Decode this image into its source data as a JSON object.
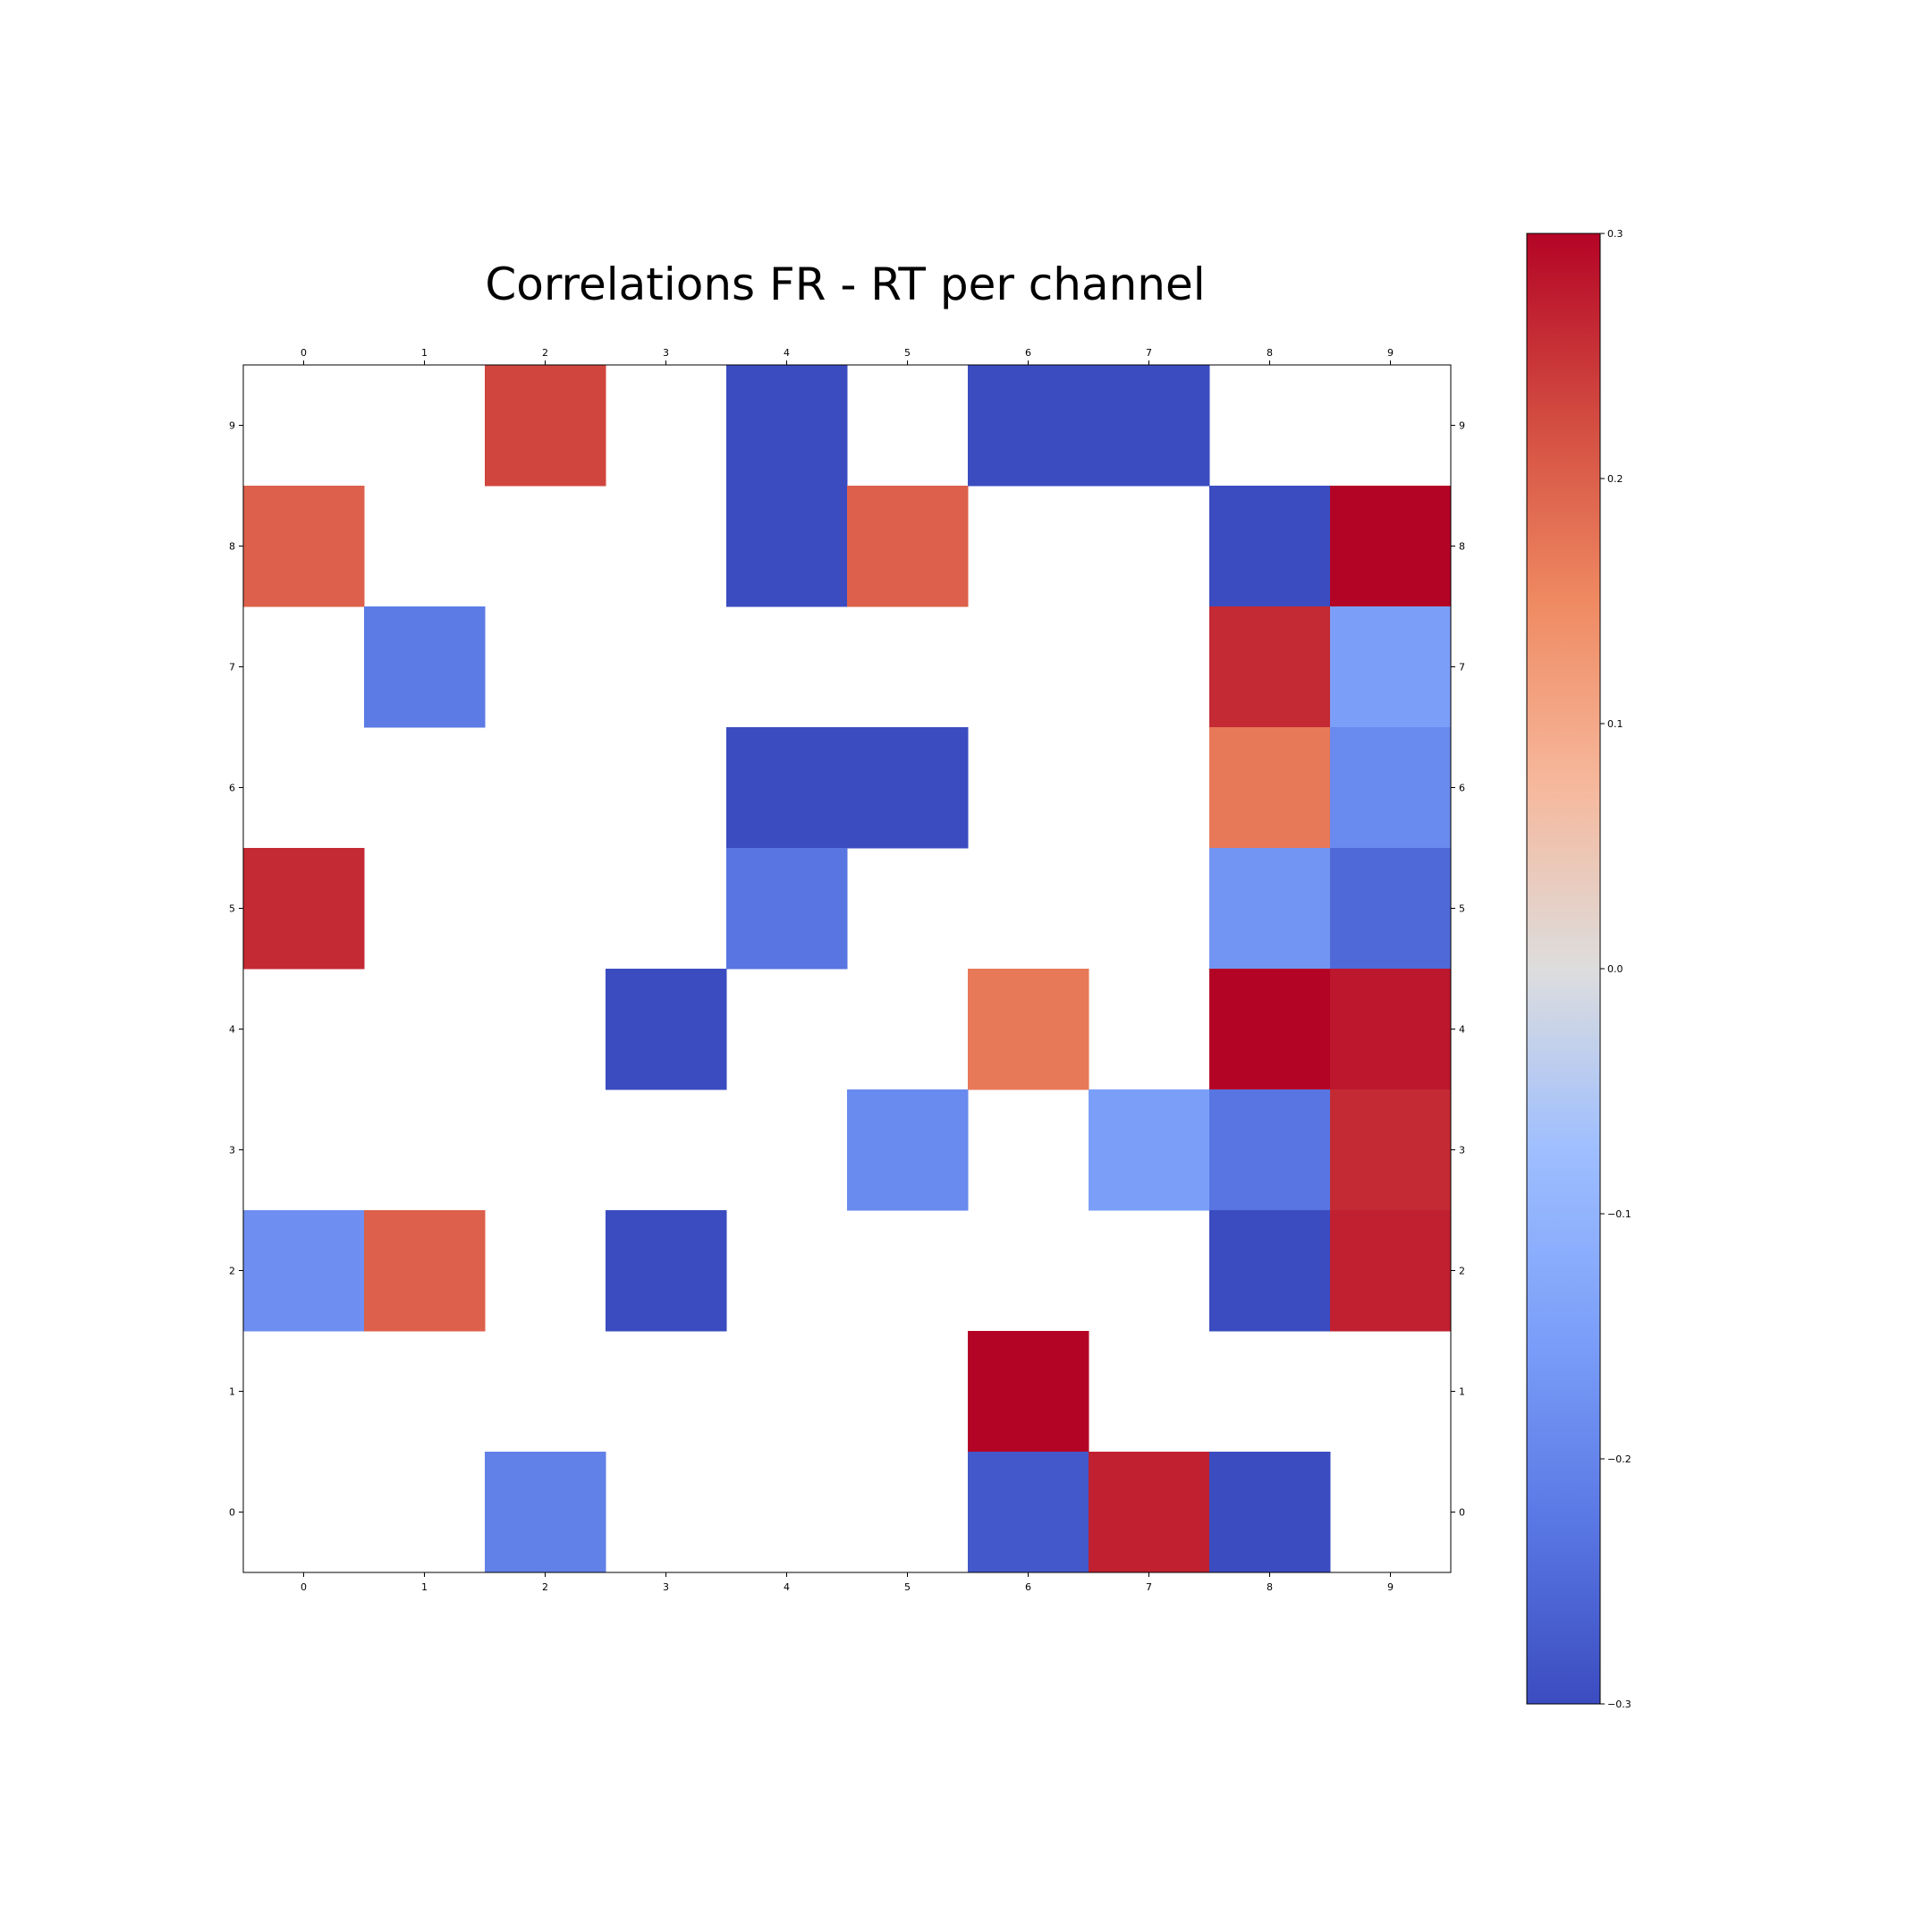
{
  "chart_data": {
    "type": "heatmap",
    "title": "Correlations FR - RT per channel",
    "xlabel": "",
    "ylabel": "",
    "x_ticks": [
      "0",
      "1",
      "2",
      "3",
      "4",
      "5",
      "6",
      "7",
      "8",
      "9"
    ],
    "y_ticks": [
      "0",
      "1",
      "2",
      "3",
      "4",
      "5",
      "6",
      "7",
      "8",
      "9"
    ],
    "colormap": "coolwarm",
    "vmin": -0.3,
    "vmax": 0.3,
    "colorbar_ticks": [
      "−0.3",
      "−0.2",
      "−0.1",
      "0.0",
      "0.1",
      "0.2",
      "0.3"
    ],
    "colorbar_tick_values": [
      -0.3,
      -0.2,
      -0.1,
      0.0,
      0.1,
      0.2,
      0.3
    ],
    "missing_color": "#ffffff",
    "grid": false,
    "cells": [
      {
        "row": 9,
        "col": 2,
        "value": 0.23
      },
      {
        "row": 9,
        "col": 4,
        "value": -0.3
      },
      {
        "row": 9,
        "col": 6,
        "value": -0.3
      },
      {
        "row": 9,
        "col": 7,
        "value": -0.3
      },
      {
        "row": 8,
        "col": 0,
        "value": 0.2
      },
      {
        "row": 8,
        "col": 4,
        "value": -0.3
      },
      {
        "row": 8,
        "col": 5,
        "value": 0.2
      },
      {
        "row": 8,
        "col": 8,
        "value": -0.3
      },
      {
        "row": 8,
        "col": 9,
        "value": 0.3
      },
      {
        "row": 7,
        "col": 1,
        "value": -0.22
      },
      {
        "row": 7,
        "col": 8,
        "value": 0.26
      },
      {
        "row": 7,
        "col": 9,
        "value": -0.15
      },
      {
        "row": 6,
        "col": 4,
        "value": -0.3
      },
      {
        "row": 6,
        "col": 5,
        "value": -0.3
      },
      {
        "row": 6,
        "col": 8,
        "value": 0.17
      },
      {
        "row": 6,
        "col": 9,
        "value": -0.19
      },
      {
        "row": 5,
        "col": 0,
        "value": 0.26
      },
      {
        "row": 5,
        "col": 4,
        "value": -0.23
      },
      {
        "row": 5,
        "col": 8,
        "value": -0.17
      },
      {
        "row": 5,
        "col": 9,
        "value": -0.25
      },
      {
        "row": 4,
        "col": 3,
        "value": -0.3
      },
      {
        "row": 4,
        "col": 6,
        "value": 0.17
      },
      {
        "row": 4,
        "col": 8,
        "value": 0.3
      },
      {
        "row": 4,
        "col": 9,
        "value": 0.28
      },
      {
        "row": 3,
        "col": 5,
        "value": -0.19
      },
      {
        "row": 3,
        "col": 7,
        "value": -0.15
      },
      {
        "row": 3,
        "col": 8,
        "value": -0.23
      },
      {
        "row": 3,
        "col": 9,
        "value": 0.26
      },
      {
        "row": 2,
        "col": 0,
        "value": -0.18
      },
      {
        "row": 2,
        "col": 1,
        "value": 0.2
      },
      {
        "row": 2,
        "col": 3,
        "value": -0.3
      },
      {
        "row": 2,
        "col": 8,
        "value": -0.3
      },
      {
        "row": 2,
        "col": 9,
        "value": 0.27
      },
      {
        "row": 1,
        "col": 6,
        "value": 0.3
      },
      {
        "row": 0,
        "col": 2,
        "value": -0.21
      },
      {
        "row": 0,
        "col": 6,
        "value": -0.28
      },
      {
        "row": 0,
        "col": 7,
        "value": 0.27
      },
      {
        "row": 0,
        "col": 8,
        "value": -0.3
      }
    ]
  }
}
